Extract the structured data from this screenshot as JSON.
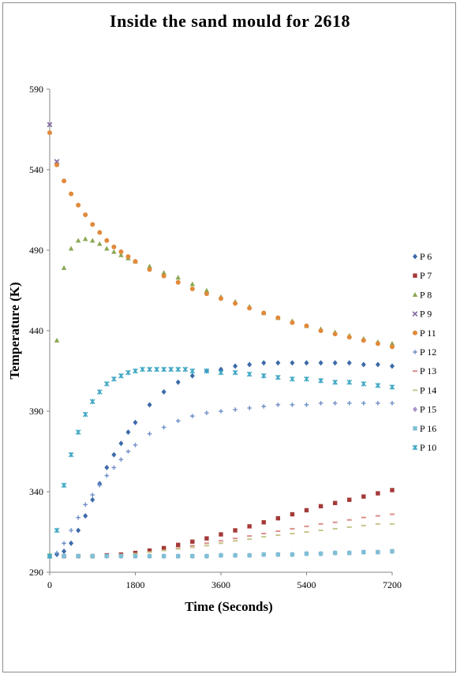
{
  "chart_data": {
    "type": "scatter",
    "title": "Inside the sand mould for 2618",
    "xlabel": "Time (Seconds)",
    "ylabel": "Temperature (K)",
    "xlim": [
      0,
      7200
    ],
    "ylim": [
      290,
      590
    ],
    "xticks": [
      0,
      1800,
      3600,
      5400,
      7200
    ],
    "yticks": [
      290,
      340,
      390,
      440,
      490,
      540,
      590
    ],
    "grid": false,
    "legend_position": "right",
    "series": [
      {
        "name": "P 6",
        "color": "#3b6aa8",
        "marker": "diamond",
        "x": [
          0,
          150,
          300,
          450,
          600,
          750,
          900,
          1050,
          1200,
          1350,
          1500,
          1650,
          1800,
          2100,
          2400,
          2700,
          3000,
          3300,
          3600,
          3900,
          4200,
          4500,
          4800,
          5100,
          5400,
          5700,
          6000,
          6300,
          6600,
          6900,
          7200
        ],
        "y": [
          300,
          301,
          303,
          308,
          316,
          325,
          335,
          345,
          355,
          363,
          370,
          377,
          383,
          394,
          402,
          408,
          412,
          415,
          416,
          418,
          419,
          420,
          420,
          420,
          420,
          420,
          420,
          420,
          419,
          419,
          418
        ]
      },
      {
        "name": "P 7",
        "color": "#a33a38",
        "marker": "square",
        "x": [
          0,
          300,
          600,
          900,
          1200,
          1500,
          1800,
          2100,
          2400,
          2700,
          3000,
          3300,
          3600,
          3900,
          4200,
          4500,
          4800,
          5100,
          5400,
          5700,
          6000,
          6300,
          6600,
          6900,
          7200
        ],
        "y": [
          300,
          300,
          300,
          300,
          300.5,
          301,
          302,
          303.5,
          305,
          307,
          309,
          311,
          313.5,
          316,
          318.5,
          321,
          323.5,
          326,
          328.5,
          331,
          333,
          335,
          337,
          339,
          341
        ]
      },
      {
        "name": "P 8",
        "color": "#8aa853",
        "marker": "triangle",
        "x": [
          0,
          150,
          300,
          450,
          600,
          750,
          900,
          1050,
          1200,
          1350,
          1500,
          1650,
          1800,
          2100,
          2400,
          2700,
          3000,
          3300,
          3600,
          3900,
          4200,
          4500,
          4800,
          5100,
          5400,
          5700,
          6000,
          6300,
          6600,
          6900,
          7200
        ],
        "y": [
          301,
          434,
          479,
          491,
          496,
          497,
          496,
          494,
          491,
          489,
          487,
          485,
          483,
          480,
          476,
          473,
          469,
          465,
          461,
          458,
          455,
          451,
          448,
          446,
          443,
          441,
          439,
          437,
          435,
          433,
          432
        ]
      },
      {
        "name": "P 9",
        "color": "#8066a0",
        "marker": "x",
        "x": [
          0,
          150
        ],
        "y": [
          568,
          545
        ]
      },
      {
        "name": "P 11",
        "color": "#e08a3c",
        "marker": "circle",
        "x": [
          0,
          150,
          300,
          450,
          600,
          750,
          900,
          1050,
          1200,
          1350,
          1500,
          1650,
          1800,
          2100,
          2400,
          2700,
          3000,
          3300,
          3600,
          3900,
          4200,
          4500,
          4800,
          5100,
          5400,
          5700,
          6000,
          6300,
          6600,
          6900,
          7200
        ],
        "y": [
          563,
          543,
          533,
          525,
          518,
          512,
          506,
          501,
          496,
          492,
          489,
          486,
          483,
          478,
          474,
          470,
          466,
          463,
          460,
          457,
          454,
          451,
          448,
          445,
          443,
          440,
          438,
          436,
          434,
          432,
          430
        ]
      },
      {
        "name": "P 12",
        "color": "#6f8fc7",
        "marker": "plus",
        "x": [
          0,
          150,
          300,
          450,
          600,
          750,
          900,
          1050,
          1200,
          1350,
          1500,
          1650,
          1800,
          2100,
          2400,
          2700,
          3000,
          3300,
          3600,
          3900,
          4200,
          4500,
          4800,
          5100,
          5400,
          5700,
          6000,
          6300,
          6600,
          6900,
          7200
        ],
        "y": [
          300,
          302,
          308,
          316,
          324,
          332,
          338,
          344,
          350,
          355,
          360,
          365,
          369,
          376,
          380,
          384,
          387,
          389,
          390,
          391,
          392,
          393,
          394,
          394,
          394,
          395,
          395,
          395,
          395,
          395,
          395
        ]
      },
      {
        "name": "P 13",
        "color": "#d98f8b",
        "marker": "dash",
        "x": [
          0,
          300,
          600,
          900,
          1200,
          1500,
          1800,
          2100,
          2400,
          2700,
          3000,
          3300,
          3600,
          3900,
          4200,
          4500,
          4800,
          5100,
          5400,
          5700,
          6000,
          6300,
          6600,
          6900,
          7200
        ],
        "y": [
          300,
          300,
          300,
          300,
          300.5,
          301,
          301.5,
          302.5,
          303.5,
          305,
          306.5,
          308,
          309.5,
          311,
          312.5,
          314,
          315.5,
          317,
          318.5,
          320,
          321,
          322.5,
          324,
          325,
          326
        ]
      },
      {
        "name": "P 14",
        "color": "#c8c58a",
        "marker": "dash",
        "x": [
          0,
          300,
          600,
          900,
          1200,
          1500,
          1800,
          2100,
          2400,
          2700,
          3000,
          3300,
          3600,
          3900,
          4200,
          4500,
          4800,
          5100,
          5400,
          5700,
          6000,
          6300,
          6600,
          6900,
          7200
        ],
        "y": [
          300,
          300,
          300,
          300,
          300.5,
          301,
          301.5,
          302.5,
          303.5,
          304.5,
          305.5,
          306.5,
          308,
          309.5,
          310.5,
          312,
          313,
          314,
          315,
          316,
          317,
          318,
          319,
          320,
          320
        ]
      },
      {
        "name": "P 15",
        "color": "#a796c7",
        "marker": "diamond",
        "x": [
          0,
          300,
          600,
          900,
          1200,
          1500,
          1800,
          2100,
          2400,
          2700,
          3000,
          3300,
          3600,
          3900,
          4200,
          4500,
          4800,
          5100,
          5400,
          5700,
          6000,
          6300,
          6600,
          6900,
          7200
        ],
        "y": [
          300,
          300,
          300,
          300,
          300,
          300,
          300,
          300,
          300,
          300,
          300,
          300,
          300.5,
          300.5,
          300.5,
          301,
          301,
          301,
          301.5,
          301.5,
          302,
          302,
          302.5,
          302.5,
          303
        ]
      },
      {
        "name": "P 16",
        "color": "#7fbfd6",
        "marker": "square",
        "x": [
          0,
          300,
          600,
          900,
          1200,
          1500,
          1800,
          2100,
          2400,
          2700,
          3000,
          3300,
          3600,
          3900,
          4200,
          4500,
          4800,
          5100,
          5400,
          5700,
          6000,
          6300,
          6600,
          6900,
          7200
        ],
        "y": [
          300,
          300,
          300,
          300,
          300,
          300,
          300,
          300,
          300,
          300,
          300,
          300,
          300.5,
          300.5,
          300.5,
          301,
          301,
          301,
          301.5,
          301.5,
          302,
          302,
          302.5,
          302.5,
          303
        ]
      },
      {
        "name": "P 10",
        "color": "#3fa7c4",
        "marker": "star",
        "x": [
          0,
          150,
          300,
          450,
          600,
          750,
          900,
          1050,
          1200,
          1350,
          1500,
          1650,
          1800,
          1950,
          2100,
          2250,
          2400,
          2550,
          2700,
          2850,
          3000,
          3300,
          3600,
          3900,
          4200,
          4500,
          4800,
          5100,
          5400,
          5700,
          6000,
          6300,
          6600,
          6900,
          7200
        ],
        "y": [
          300,
          316,
          344,
          363,
          377,
          388,
          396,
          402,
          407,
          410,
          412,
          414,
          415,
          416,
          416,
          416,
          416,
          416,
          416,
          416,
          415,
          415,
          414,
          414,
          413,
          412,
          411,
          410,
          410,
          409,
          408,
          408,
          407,
          406,
          405
        ]
      }
    ]
  }
}
